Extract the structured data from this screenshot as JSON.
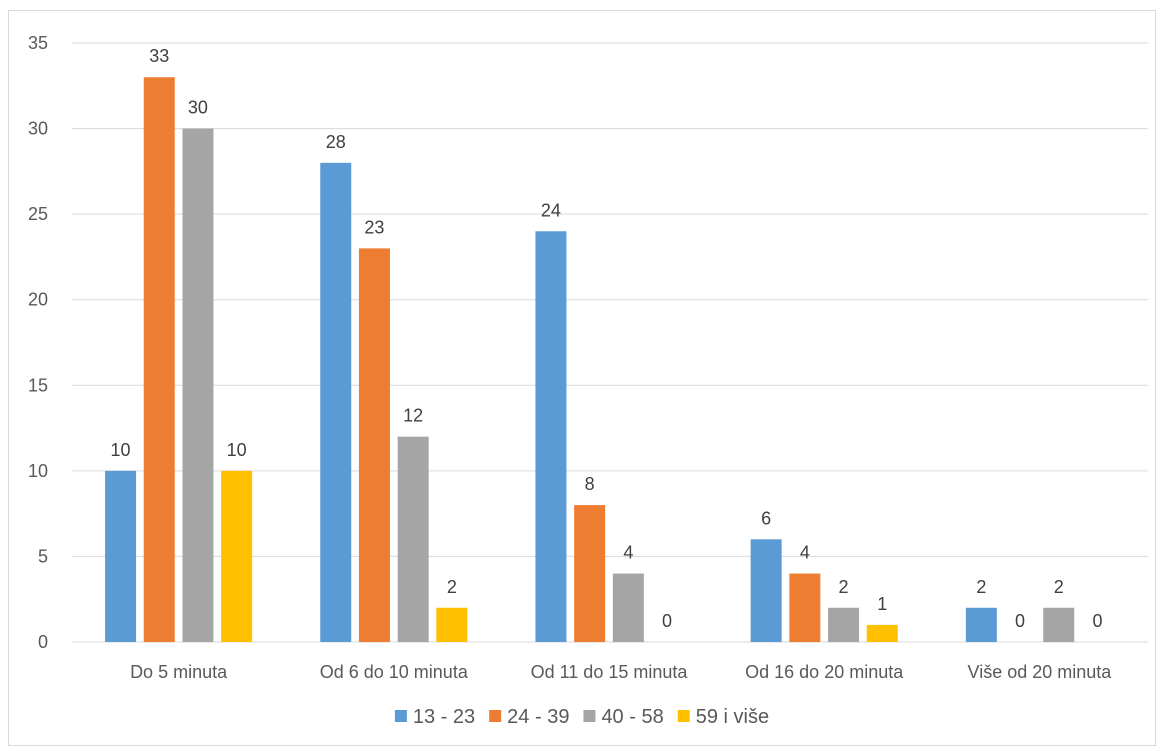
{
  "chart_data": {
    "type": "bar",
    "title": "",
    "xlabel": "",
    "ylabel": "",
    "categories": [
      "Do 5 minuta",
      "Od 6 do 10 minuta",
      "Od 11 do 15 minuta",
      "Od 16 do 20 minuta",
      "Više od 20 minuta"
    ],
    "series": [
      {
        "name": "13 - 23",
        "color": "#5b9bd5",
        "values": [
          10,
          28,
          24,
          6,
          2
        ]
      },
      {
        "name": "24 - 39",
        "color": "#ed7d31",
        "values": [
          33,
          23,
          8,
          4,
          0
        ]
      },
      {
        "name": "40 - 58",
        "color": "#a5a5a5",
        "values": [
          30,
          12,
          4,
          2,
          2
        ]
      },
      {
        "name": "59 i više",
        "color": "#ffc000",
        "values": [
          10,
          2,
          0,
          1,
          0
        ]
      }
    ],
    "ylim": [
      0,
      35
    ],
    "yticks": [
      0,
      5,
      10,
      15,
      20,
      25,
      30,
      35
    ],
    "grid": true,
    "legend": "bottom"
  }
}
